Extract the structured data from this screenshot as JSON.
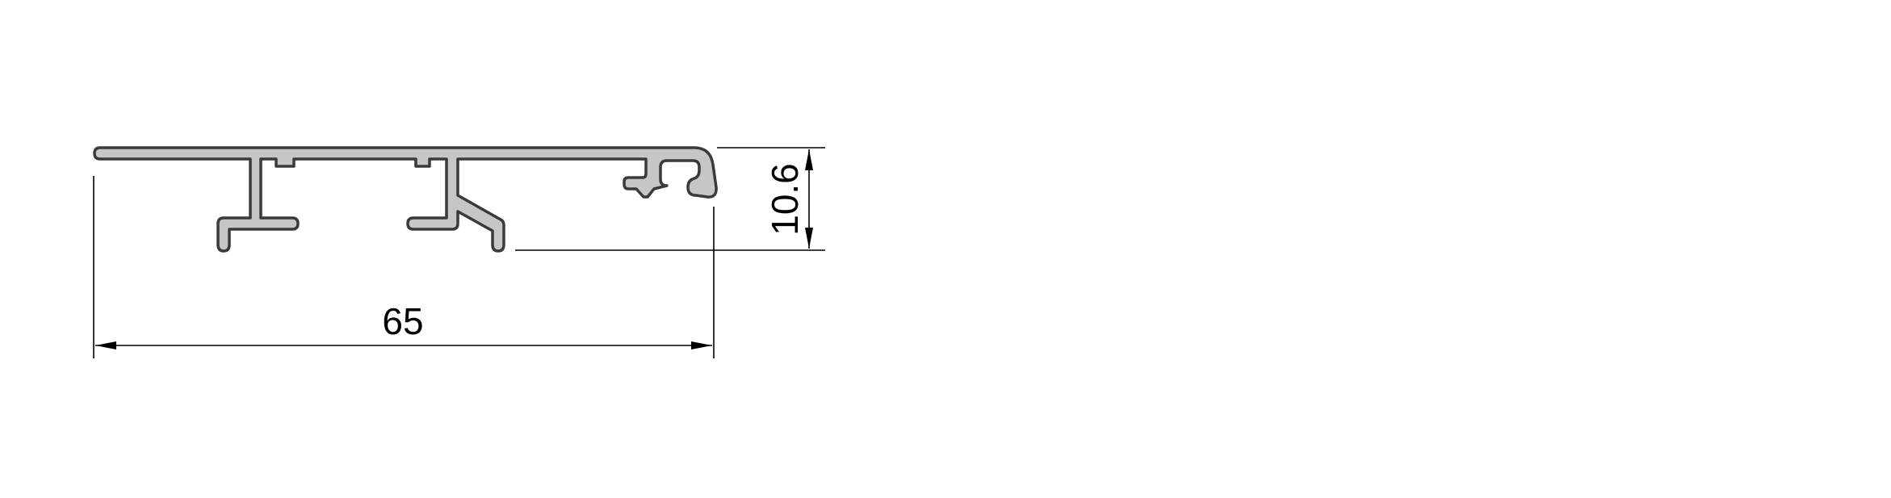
{
  "dimensions": {
    "width_label": "65",
    "height_label": "10.6"
  }
}
